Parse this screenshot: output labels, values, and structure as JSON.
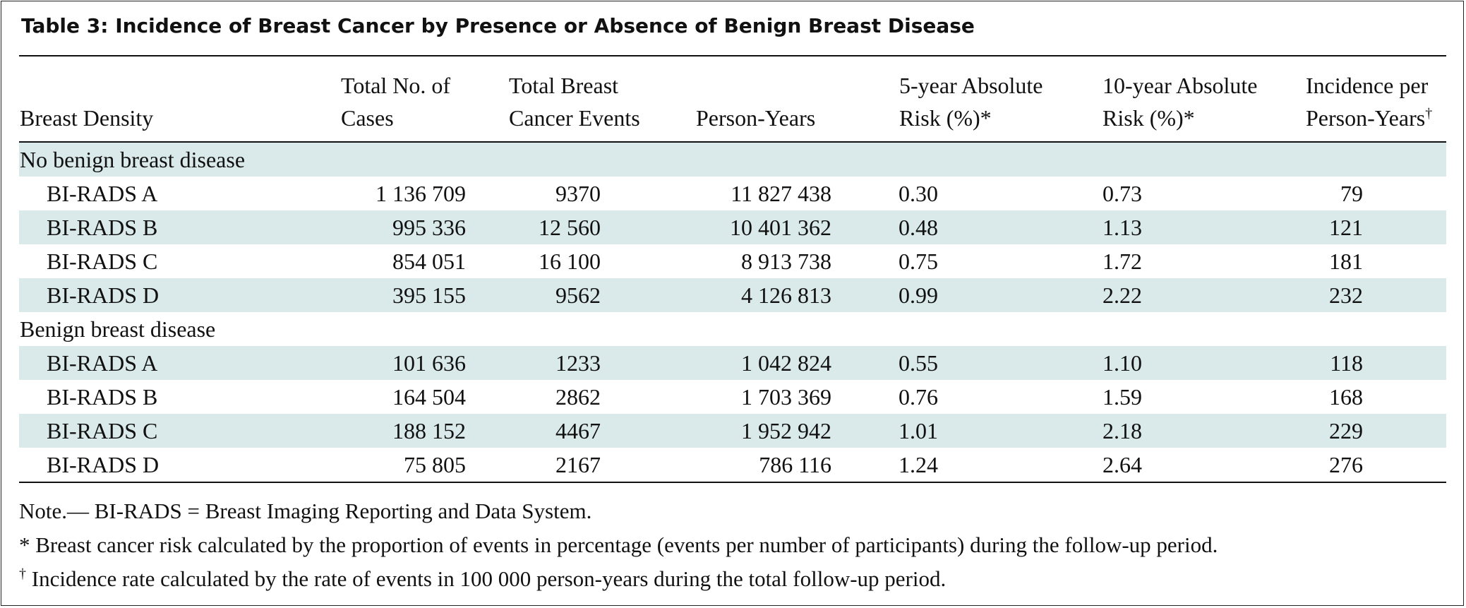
{
  "title": "Table 3: Incidence of Breast Cancer by Presence or Absence of Benign Breast Disease",
  "headers": {
    "density": "Breast Density",
    "cases_l1": "Total No. of",
    "cases_l2": "Cases",
    "events_l1": "Total Breast",
    "events_l2": "Cancer Events",
    "person_years": "Person-Years",
    "risk5_l1": "5-year Absolute",
    "risk5_l2": "Risk (%)*",
    "risk10_l1": "10-year Absolute",
    "risk10_l2": "Risk (%)*",
    "incidence_l1": "Incidence per",
    "incidence_l2": "Person-Years",
    "incidence_mark": "†"
  },
  "groups": [
    {
      "label": "No benign breast disease",
      "rows": [
        {
          "density": "BI-RADS A",
          "cases": "1 136 709",
          "events": "9370",
          "person_years": "11 827 438",
          "risk5": "0.30",
          "risk10": "0.73",
          "incidence": "79"
        },
        {
          "density": "BI-RADS B",
          "cases": "995 336",
          "events": "12 560",
          "person_years": "10 401 362",
          "risk5": "0.48",
          "risk10": "1.13",
          "incidence": "121"
        },
        {
          "density": "BI-RADS C",
          "cases": "854 051",
          "events": "16 100",
          "person_years": "8 913 738",
          "risk5": "0.75",
          "risk10": "1.72",
          "incidence": "181"
        },
        {
          "density": "BI-RADS D",
          "cases": "395 155",
          "events": "9562",
          "person_years": "4 126 813",
          "risk5": "0.99",
          "risk10": "2.22",
          "incidence": "232"
        }
      ]
    },
    {
      "label": "Benign breast disease",
      "rows": [
        {
          "density": "BI-RADS A",
          "cases": "101 636",
          "events": "1233",
          "person_years": "1 042 824",
          "risk5": "0.55",
          "risk10": "1.10",
          "incidence": "118"
        },
        {
          "density": "BI-RADS B",
          "cases": "164 504",
          "events": "2862",
          "person_years": "1 703 369",
          "risk5": "0.76",
          "risk10": "1.59",
          "incidence": "168"
        },
        {
          "density": "BI-RADS C",
          "cases": "188 152",
          "events": "4467",
          "person_years": "1 952 942",
          "risk5": "1.01",
          "risk10": "2.18",
          "incidence": "229"
        },
        {
          "density": "BI-RADS D",
          "cases": "75 805",
          "events": "2167",
          "person_years": "786 116",
          "risk5": "1.24",
          "risk10": "2.64",
          "incidence": "276"
        }
      ]
    }
  ],
  "notes": {
    "note": "Note.— BI-RADS = Breast Imaging Reporting and Data System.",
    "asterisk": "* Breast cancer risk calculated by the proportion of events in percentage (events per number of participants) during the follow-up period.",
    "dagger_mark": "†",
    "dagger": " Incidence rate calculated by the rate of events in 100 000 person-years during the total follow-up period."
  },
  "colors": {
    "shade": "#daeaeb",
    "text": "#111111"
  }
}
